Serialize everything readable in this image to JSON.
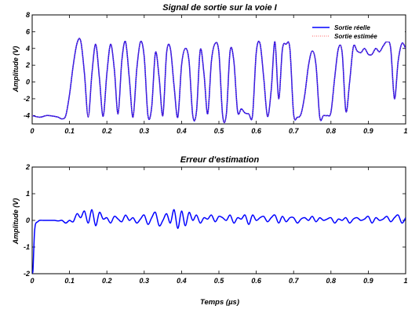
{
  "chart_data": [
    {
      "type": "line",
      "title": "Signal de sortie sur la voie I",
      "xlabel": "",
      "ylabel": "Amplitude (V)",
      "xlim": [
        0,
        1
      ],
      "ylim": [
        -5,
        8
      ],
      "xticks": [
        "0",
        "0.1",
        "0.2",
        "0.3",
        "0.4",
        "0.5",
        "0.6",
        "0.7",
        "0.8",
        "0.9",
        "1"
      ],
      "yticks": [
        "-4",
        "-2",
        "0",
        "2",
        "4",
        "6",
        "8"
      ],
      "grid": false,
      "legend_position": "top-right",
      "series": [
        {
          "name": "Sortie réelle",
          "color": "#0000ff",
          "style": "solid",
          "x": [
            0,
            0.02,
            0.04,
            0.06,
            0.07,
            0.08,
            0.09,
            0.1,
            0.11,
            0.12,
            0.13,
            0.14,
            0.15,
            0.16,
            0.17,
            0.18,
            0.19,
            0.2,
            0.21,
            0.22,
            0.23,
            0.24,
            0.25,
            0.26,
            0.27,
            0.28,
            0.29,
            0.3,
            0.31,
            0.32,
            0.33,
            0.34,
            0.35,
            0.36,
            0.37,
            0.38,
            0.39,
            0.4,
            0.41,
            0.42,
            0.43,
            0.44,
            0.45,
            0.46,
            0.47,
            0.48,
            0.49,
            0.5,
            0.51,
            0.52,
            0.53,
            0.54,
            0.55,
            0.56,
            0.57,
            0.58,
            0.59,
            0.6,
            0.61,
            0.62,
            0.63,
            0.64,
            0.65,
            0.66,
            0.67,
            0.68,
            0.69,
            0.7,
            0.71,
            0.72,
            0.73,
            0.74,
            0.75,
            0.76,
            0.77,
            0.78,
            0.79,
            0.8,
            0.81,
            0.82,
            0.83,
            0.84,
            0.85,
            0.86,
            0.87,
            0.88,
            0.89,
            0.9,
            0.91,
            0.92,
            0.93,
            0.94,
            0.95,
            0.96,
            0.97,
            0.98,
            0.99,
            1
          ],
          "y": [
            -4.0,
            -4.2,
            -4.0,
            -4.1,
            -4.2,
            -4.4,
            -4.0,
            -1.5,
            2.0,
            4.6,
            4.9,
            1.0,
            -4.2,
            1.0,
            4.5,
            0.5,
            -4.1,
            1.0,
            4.5,
            1.5,
            -3.8,
            2.5,
            4.8,
            0.5,
            -4.2,
            1.5,
            4.8,
            3.0,
            -4.0,
            -3.0,
            3.5,
            0.5,
            -4.0,
            3.5,
            4.0,
            -0.5,
            -4.2,
            2.0,
            4.0,
            2.5,
            -4.0,
            -3.5,
            3.8,
            1.0,
            -3.8,
            2.5,
            4.6,
            3.5,
            -4.0,
            -3.8,
            3.7,
            2.5,
            -3.5,
            -3.2,
            -3.7,
            -3.8,
            -4.0,
            3.5,
            4.6,
            0.5,
            -4.1,
            -1.0,
            4.8,
            -2.0,
            3.9,
            4.5,
            4.0,
            -3.8,
            -4.2,
            -3.8,
            -1.5,
            2.0,
            3.7,
            2.0,
            -4.2,
            -4.0,
            -4.0,
            -3.6,
            0.5,
            4.0,
            3.5,
            -3.5,
            0.0,
            4.2,
            3.7,
            3.5,
            4.0,
            3.3,
            3.3,
            4.0,
            3.6,
            4.3,
            4.8,
            4.0,
            -2.0,
            2.5,
            4.6,
            4.0
          ]
        },
        {
          "name": "Sortie estimée",
          "color": "#ff6666",
          "style": "dotted",
          "x": [
            0,
            0.02,
            0.04,
            0.06,
            0.07,
            0.08,
            0.09,
            0.1,
            0.11,
            0.12,
            0.13,
            0.14,
            0.15,
            0.16,
            0.17,
            0.18,
            0.19,
            0.2,
            0.21,
            0.22,
            0.23,
            0.24,
            0.25,
            0.26,
            0.27,
            0.28,
            0.29,
            0.3,
            0.31,
            0.32,
            0.33,
            0.34,
            0.35,
            0.36,
            0.37,
            0.38,
            0.39,
            0.4,
            0.41,
            0.42,
            0.43,
            0.44,
            0.45,
            0.46,
            0.47,
            0.48,
            0.49,
            0.5,
            0.51,
            0.52,
            0.53,
            0.54,
            0.55,
            0.56,
            0.57,
            0.58,
            0.59,
            0.6,
            0.61,
            0.62,
            0.63,
            0.64,
            0.65,
            0.66,
            0.67,
            0.68,
            0.69,
            0.7,
            0.71,
            0.72,
            0.73,
            0.74,
            0.75,
            0.76,
            0.77,
            0.78,
            0.79,
            0.8,
            0.81,
            0.82,
            0.83,
            0.84,
            0.85,
            0.86,
            0.87,
            0.88,
            0.89,
            0.9,
            0.91,
            0.92,
            0.93,
            0.94,
            0.95,
            0.96,
            0.97,
            0.98,
            0.99,
            1
          ],
          "y": [
            -4.0,
            -4.2,
            -4.0,
            -4.1,
            -4.2,
            -4.4,
            -4.0,
            -1.5,
            2.0,
            4.6,
            4.9,
            1.0,
            -4.2,
            1.0,
            4.5,
            0.5,
            -4.1,
            1.0,
            4.5,
            1.5,
            -3.8,
            2.5,
            4.8,
            0.5,
            -4.2,
            1.5,
            4.8,
            3.0,
            -4.0,
            -3.0,
            3.5,
            0.5,
            -4.0,
            3.5,
            4.0,
            -0.5,
            -4.2,
            2.0,
            4.0,
            2.5,
            -4.0,
            -3.5,
            3.8,
            1.0,
            -3.8,
            2.5,
            4.6,
            3.5,
            -4.0,
            -3.8,
            3.7,
            2.5,
            -3.5,
            -3.2,
            -3.7,
            -3.8,
            -4.0,
            3.5,
            4.6,
            0.5,
            -4.1,
            -1.0,
            4.8,
            -2.0,
            3.9,
            4.5,
            4.0,
            -3.8,
            -4.2,
            -3.8,
            -1.5,
            2.0,
            3.7,
            2.0,
            -4.2,
            -4.0,
            -4.0,
            -3.6,
            0.5,
            4.0,
            3.5,
            -3.5,
            0.0,
            4.2,
            3.7,
            3.5,
            4.0,
            3.3,
            3.3,
            4.0,
            3.6,
            4.3,
            4.8,
            4.0,
            -2.0,
            2.5,
            4.6,
            4.0
          ]
        }
      ]
    },
    {
      "type": "line",
      "title": "Erreur d'estimation",
      "xlabel": "Temps (µs)",
      "ylabel": "Amplitude (V)",
      "xlim": [
        0,
        1
      ],
      "ylim": [
        -2,
        2
      ],
      "xticks": [
        "0",
        "0.1",
        "0.2",
        "0.3",
        "0.4",
        "0.5",
        "0.6",
        "0.7",
        "0.8",
        "0.9",
        "1"
      ],
      "yticks": [
        "-2",
        "-1",
        "0",
        "1",
        "2"
      ],
      "grid": false,
      "series": [
        {
          "color": "#0000ff",
          "style": "solid",
          "x": [
            0,
            0.002,
            0.004,
            0.006,
            0.008,
            0.01,
            0.015,
            0.02,
            0.03,
            0.04,
            0.05,
            0.06,
            0.07,
            0.08,
            0.09,
            0.1,
            0.11,
            0.12,
            0.13,
            0.14,
            0.15,
            0.16,
            0.17,
            0.18,
            0.19,
            0.2,
            0.21,
            0.22,
            0.23,
            0.24,
            0.25,
            0.26,
            0.27,
            0.28,
            0.29,
            0.3,
            0.31,
            0.32,
            0.33,
            0.34,
            0.35,
            0.36,
            0.37,
            0.38,
            0.39,
            0.4,
            0.41,
            0.42,
            0.43,
            0.44,
            0.45,
            0.46,
            0.47,
            0.48,
            0.49,
            0.5,
            0.51,
            0.52,
            0.53,
            0.54,
            0.55,
            0.56,
            0.57,
            0.58,
            0.59,
            0.6,
            0.61,
            0.62,
            0.63,
            0.64,
            0.65,
            0.66,
            0.67,
            0.68,
            0.69,
            0.7,
            0.71,
            0.72,
            0.73,
            0.74,
            0.75,
            0.76,
            0.77,
            0.78,
            0.79,
            0.8,
            0.81,
            0.82,
            0.83,
            0.84,
            0.85,
            0.86,
            0.87,
            0.88,
            0.89,
            0.9,
            0.91,
            0.92,
            0.93,
            0.94,
            0.95,
            0.96,
            0.97,
            0.98,
            0.99,
            1
          ],
          "y": [
            -1.95,
            -1.9,
            -1.2,
            -0.5,
            -0.2,
            -0.1,
            -0.05,
            0.0,
            0.0,
            0.0,
            0.0,
            0.0,
            -0.02,
            0.0,
            -0.1,
            0.0,
            -0.05,
            0.25,
            0.1,
            0.35,
            -0.1,
            0.4,
            -0.2,
            0.3,
            0.05,
            0.1,
            -0.1,
            0.15,
            0.05,
            -0.05,
            0.2,
            0.0,
            0.1,
            -0.1,
            0.05,
            0.2,
            -0.15,
            0.1,
            0.3,
            -0.2,
            0.0,
            0.25,
            -0.1,
            0.4,
            -0.3,
            0.35,
            -0.2,
            0.3,
            0.0,
            0.2,
            -0.1,
            0.1,
            0.05,
            0.2,
            -0.05,
            0.15,
            0.1,
            0.0,
            0.2,
            -0.1,
            0.1,
            0.05,
            0.2,
            -0.15,
            0.2,
            0.0,
            0.1,
            0.15,
            -0.05,
            0.1,
            0.2,
            -0.1,
            0.15,
            -0.05,
            0.1,
            0.1,
            -0.1,
            0.05,
            0.1,
            0.0,
            0.15,
            -0.05,
            0.1,
            0.0,
            0.05,
            0.1,
            -0.1,
            0.05,
            0.0,
            0.1,
            -0.1,
            0.05,
            0.1,
            0.0,
            0.05,
            0.15,
            -0.1,
            0.1,
            0.0,
            0.05,
            0.15,
            -0.05,
            0.1,
            0.2,
            -0.1,
            0.1
          ]
        }
      ]
    }
  ]
}
